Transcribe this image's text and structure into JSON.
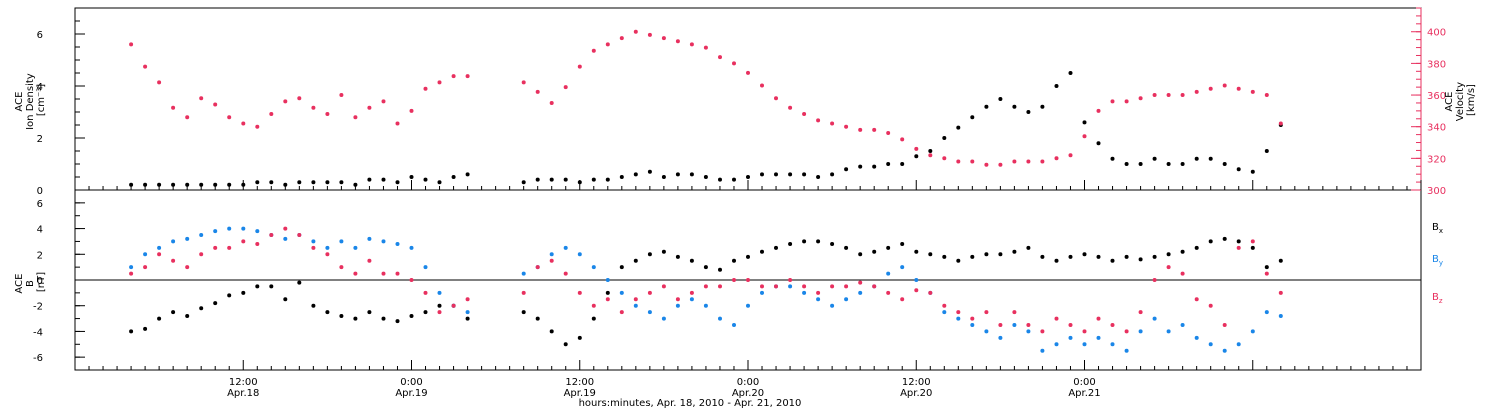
{
  "colors": {
    "black": "#000000",
    "pink": "#e8305f",
    "blue": "#1a86e8"
  },
  "chart_data": [
    {
      "type": "scatter",
      "panel": "top",
      "ylabel_lines": [
        "ACE",
        "Ion Density",
        "[cm⁻³]"
      ],
      "ylim": [
        0,
        7
      ],
      "yticks": [
        0,
        2,
        4,
        6
      ],
      "y2label_lines": [
        "ACE",
        "Velocity",
        "[km/s]"
      ],
      "y2lim": [
        300,
        415
      ],
      "y2ticks": [
        300,
        320,
        340,
        360,
        380,
        400
      ],
      "series": [
        {
          "color": "black",
          "axis": "left",
          "x": [
            0,
            1,
            2,
            3,
            4,
            5,
            6,
            7,
            8,
            9,
            10,
            11,
            12,
            13,
            14,
            15,
            16,
            17,
            18,
            19,
            20,
            21,
            22,
            23,
            24,
            28,
            29,
            30,
            31,
            32,
            33,
            34,
            35,
            36,
            37,
            38,
            39,
            40,
            41,
            42,
            43,
            44,
            45,
            46,
            47,
            48,
            49,
            50,
            51,
            52,
            53,
            54,
            55,
            56,
            57,
            58,
            59,
            60,
            61,
            62,
            63,
            64,
            65,
            66,
            67,
            68,
            69,
            70,
            71,
            72,
            73,
            74,
            75,
            76,
            77,
            78,
            79,
            80,
            81,
            82
          ],
          "y": [
            0.2,
            0.2,
            0.2,
            0.2,
            0.2,
            0.2,
            0.2,
            0.2,
            0.2,
            0.3,
            0.3,
            0.2,
            0.3,
            0.3,
            0.3,
            0.3,
            0.2,
            0.4,
            0.4,
            0.3,
            0.5,
            0.4,
            0.3,
            0.5,
            0.6,
            0.3,
            0.4,
            0.4,
            0.4,
            0.3,
            0.4,
            0.4,
            0.5,
            0.6,
            0.7,
            0.5,
            0.6,
            0.6,
            0.5,
            0.4,
            0.4,
            0.5,
            0.6,
            0.6,
            0.6,
            0.6,
            0.5,
            0.6,
            0.8,
            0.9,
            0.9,
            1.0,
            1.0,
            1.3,
            1.5,
            2.0,
            2.4,
            2.8,
            3.2,
            3.5,
            3.2,
            3.0,
            3.2,
            4.0,
            4.5,
            2.6,
            1.8,
            1.2,
            1.0,
            1.0,
            1.2,
            1.0,
            1.0,
            1.2,
            1.2,
            1.0,
            0.8,
            0.7,
            1.5,
            2.5
          ]
        },
        {
          "color": "pink",
          "axis": "right",
          "x": [
            0,
            1,
            2,
            3,
            4,
            5,
            6,
            7,
            8,
            9,
            10,
            11,
            12,
            13,
            14,
            15,
            16,
            17,
            18,
            19,
            20,
            21,
            22,
            23,
            24,
            28,
            29,
            30,
            31,
            32,
            33,
            34,
            35,
            36,
            37,
            38,
            39,
            40,
            41,
            42,
            43,
            44,
            45,
            46,
            47,
            48,
            49,
            50,
            51,
            52,
            53,
            54,
            55,
            56,
            57,
            58,
            59,
            60,
            61,
            62,
            63,
            64,
            65,
            66,
            67,
            68,
            69,
            70,
            71,
            72,
            73,
            74,
            75,
            76,
            77,
            78,
            79,
            80,
            81,
            82
          ],
          "y": [
            392,
            378,
            368,
            352,
            346,
            358,
            354,
            346,
            342,
            340,
            348,
            356,
            358,
            352,
            348,
            360,
            346,
            352,
            356,
            342,
            350,
            364,
            368,
            372,
            372,
            368,
            362,
            355,
            365,
            378,
            388,
            392,
            396,
            400,
            398,
            396,
            394,
            392,
            390,
            384,
            380,
            374,
            366,
            358,
            352,
            348,
            344,
            342,
            340,
            338,
            338,
            336,
            332,
            326,
            322,
            320,
            318,
            318,
            316,
            316,
            318,
            318,
            318,
            320,
            322,
            334,
            350,
            356,
            356,
            358,
            360,
            360,
            360,
            362,
            364,
            366,
            364,
            362,
            360,
            342
          ]
        }
      ]
    },
    {
      "type": "scatter",
      "panel": "bottom",
      "ylabel_lines": [
        "ACE",
        "B",
        "[nT]"
      ],
      "ylim": [
        -7,
        7
      ],
      "yticks": [
        -6,
        -4,
        -2,
        0,
        2,
        4,
        6
      ],
      "xlabel": "hours:minutes, Apr. 18, 2010 - Apr. 21, 2010",
      "xlim": [
        -4,
        92
      ],
      "xticks": [
        {
          "x": 8,
          "line1": "12:00",
          "line2": "Apr.18"
        },
        {
          "x": 20,
          "line1": "0:00",
          "line2": "Apr.19"
        },
        {
          "x": 32,
          "line1": "12:00",
          "line2": "Apr.19"
        },
        {
          "x": 44,
          "line1": "0:00",
          "line2": "Apr.20"
        },
        {
          "x": 56,
          "line1": "12:00",
          "line2": "Apr.20"
        },
        {
          "x": 68,
          "line1": "0:00",
          "line2": "Apr.21"
        }
      ],
      "series": [
        {
          "name": "Bx",
          "name_main": "B",
          "name_sub": "x",
          "color": "black",
          "x": [
            0,
            1,
            2,
            3,
            4,
            5,
            6,
            7,
            8,
            9,
            10,
            11,
            12,
            13,
            14,
            15,
            16,
            17,
            18,
            19,
            20,
            21,
            22,
            23,
            24,
            28,
            29,
            30,
            31,
            32,
            33,
            34,
            35,
            36,
            37,
            38,
            39,
            40,
            41,
            42,
            43,
            44,
            45,
            46,
            47,
            48,
            49,
            50,
            51,
            52,
            53,
            54,
            55,
            56,
            57,
            58,
            59,
            60,
            61,
            62,
            63,
            64,
            65,
            66,
            67,
            68,
            69,
            70,
            71,
            72,
            73,
            74,
            75,
            76,
            77,
            78,
            79,
            80,
            81,
            82
          ],
          "y": [
            -4.0,
            -3.8,
            -3.0,
            -2.5,
            -2.8,
            -2.2,
            -1.8,
            -1.2,
            -1.0,
            -0.5,
            -0.5,
            -1.5,
            -0.2,
            -2.0,
            -2.5,
            -2.8,
            -3.0,
            -2.5,
            -3.0,
            -3.2,
            -2.8,
            -2.5,
            -2.0,
            -2.0,
            -3.0,
            -2.5,
            -3.0,
            -4.0,
            -5.0,
            -4.5,
            -3.0,
            -1.0,
            1.0,
            1.5,
            2.0,
            2.2,
            1.8,
            1.5,
            1.0,
            0.8,
            1.5,
            1.8,
            2.2,
            2.5,
            2.8,
            3.0,
            3.0,
            2.8,
            2.5,
            2.0,
            2.2,
            2.5,
            2.8,
            2.2,
            2.0,
            1.8,
            1.5,
            1.8,
            2.0,
            2.0,
            2.2,
            2.5,
            1.8,
            1.5,
            1.8,
            2.0,
            1.8,
            1.5,
            1.8,
            1.6,
            1.8,
            2.0,
            2.2,
            2.5,
            3.0,
            3.2,
            3.0,
            2.5,
            1.0,
            1.5
          ]
        },
        {
          "name": "By",
          "name_main": "B",
          "name_sub": "y",
          "color": "blue",
          "x": [
            0,
            1,
            2,
            3,
            4,
            5,
            6,
            7,
            8,
            9,
            10,
            11,
            12,
            13,
            14,
            15,
            16,
            17,
            18,
            19,
            20,
            21,
            22,
            23,
            24,
            28,
            29,
            30,
            31,
            32,
            33,
            34,
            35,
            36,
            37,
            38,
            39,
            40,
            41,
            42,
            43,
            44,
            45,
            46,
            47,
            48,
            49,
            50,
            51,
            52,
            53,
            54,
            55,
            56,
            57,
            58,
            59,
            60,
            61,
            62,
            63,
            64,
            65,
            66,
            67,
            68,
            69,
            70,
            71,
            72,
            73,
            74,
            75,
            76,
            77,
            78,
            79,
            80,
            81,
            82
          ],
          "y": [
            1.0,
            2.0,
            2.5,
            3.0,
            3.2,
            3.5,
            3.8,
            4.0,
            4.0,
            3.8,
            3.5,
            3.2,
            3.5,
            3.0,
            2.5,
            3.0,
            2.5,
            3.2,
            3.0,
            2.8,
            2.5,
            1.0,
            -1.0,
            -2.0,
            -2.5,
            0.5,
            1.0,
            2.0,
            2.5,
            2.0,
            1.0,
            0.0,
            -1.0,
            -2.0,
            -2.5,
            -3.0,
            -2.0,
            -1.5,
            -2.0,
            -3.0,
            -3.5,
            -2.0,
            -1.0,
            -0.5,
            -0.5,
            -1.0,
            -1.5,
            -2.0,
            -1.5,
            -1.0,
            -0.5,
            0.5,
            1.0,
            0.0,
            -1.0,
            -2.5,
            -3.0,
            -3.5,
            -4.0,
            -4.5,
            -3.5,
            -4.0,
            -5.5,
            -5.0,
            -4.5,
            -5.0,
            -4.5,
            -5.0,
            -5.5,
            -4.0,
            -3.0,
            -4.0,
            -3.5,
            -4.5,
            -5.0,
            -5.5,
            -5.0,
            -4.0,
            -2.5,
            -2.8
          ]
        },
        {
          "name": "Bz",
          "name_main": "B",
          "name_sub": "z",
          "color": "pink",
          "x": [
            0,
            1,
            2,
            3,
            4,
            5,
            6,
            7,
            8,
            9,
            10,
            11,
            12,
            13,
            14,
            15,
            16,
            17,
            18,
            19,
            20,
            21,
            22,
            23,
            24,
            28,
            29,
            30,
            31,
            32,
            33,
            34,
            35,
            36,
            37,
            38,
            39,
            40,
            41,
            42,
            43,
            44,
            45,
            46,
            47,
            48,
            49,
            50,
            51,
            52,
            53,
            54,
            55,
            56,
            57,
            58,
            59,
            60,
            61,
            62,
            63,
            64,
            65,
            66,
            67,
            68,
            69,
            70,
            71,
            72,
            73,
            74,
            75,
            76,
            77,
            78,
            79,
            80,
            81,
            82
          ],
          "y": [
            0.5,
            1.0,
            2.0,
            1.5,
            1.0,
            2.0,
            2.5,
            2.5,
            3.0,
            2.8,
            3.5,
            4.0,
            3.5,
            2.5,
            2.0,
            1.0,
            0.5,
            1.5,
            0.5,
            0.5,
            0.0,
            -1.0,
            -2.5,
            -2.0,
            -1.5,
            -1.0,
            1.0,
            1.5,
            0.5,
            -1.0,
            -2.0,
            -1.5,
            -2.5,
            -1.5,
            -1.0,
            -0.5,
            -1.5,
            -1.0,
            -0.5,
            -0.5,
            0.0,
            0.0,
            -0.5,
            -0.5,
            0.0,
            -0.5,
            -1.0,
            -0.5,
            -0.5,
            -0.2,
            -0.5,
            -1.0,
            -1.5,
            -0.8,
            -1.0,
            -2.0,
            -2.5,
            -3.0,
            -2.5,
            -3.5,
            -2.5,
            -3.5,
            -4.0,
            -3.0,
            -3.5,
            -4.0,
            -3.0,
            -3.5,
            -4.0,
            -2.5,
            0.0,
            1.0,
            0.5,
            -1.5,
            -2.0,
            -3.5,
            2.5,
            3.0,
            0.5,
            -1.0
          ]
        }
      ]
    }
  ]
}
